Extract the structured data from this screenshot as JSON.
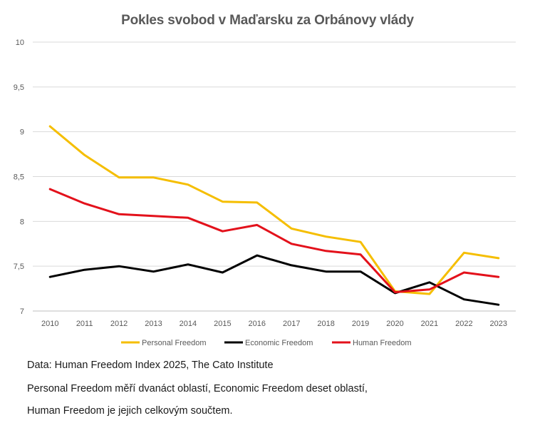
{
  "chart_data": {
    "type": "line",
    "title": "Pokles svobod v Maďarsku za Orbánovy vlády",
    "xlabel": "",
    "ylabel": "",
    "categories": [
      "2010",
      "2011",
      "2012",
      "2013",
      "2014",
      "2015",
      "2016",
      "2017",
      "2018",
      "2019",
      "2020",
      "2021",
      "2022",
      "2023"
    ],
    "ylim": [
      7,
      10
    ],
    "yticks": [
      7,
      7.5,
      8,
      8.5,
      9,
      9.5,
      10
    ],
    "ytick_labels": [
      "7",
      "7,5",
      "8",
      "8,5",
      "9",
      "9,5",
      "10"
    ],
    "grid": true,
    "legend_position": "bottom",
    "series": [
      {
        "name": "Personal Freedom",
        "color": "#F5BE00",
        "values": [
          9.06,
          8.74,
          8.49,
          8.49,
          8.41,
          8.22,
          8.21,
          7.92,
          7.83,
          7.77,
          7.22,
          7.19,
          7.65,
          7.59
        ]
      },
      {
        "name": "Economic Freedom",
        "color": "#000000",
        "values": [
          7.38,
          7.46,
          7.5,
          7.44,
          7.52,
          7.43,
          7.62,
          7.51,
          7.44,
          7.44,
          7.2,
          7.32,
          7.13,
          7.07
        ]
      },
      {
        "name": "Human Freedom",
        "color": "#E3111B",
        "values": [
          8.36,
          8.2,
          8.08,
          8.06,
          8.04,
          7.89,
          7.96,
          7.75,
          7.67,
          7.63,
          7.21,
          7.24,
          7.43,
          7.38
        ]
      }
    ]
  },
  "notes": {
    "line1": "Data: Human Freedom Index 2025, The Cato Institute",
    "line2": "Personal Freedom měří dvanáct oblastí, Economic Freedom deset oblastí,",
    "line3": "Human Freedom je jejich celkovým součtem."
  }
}
